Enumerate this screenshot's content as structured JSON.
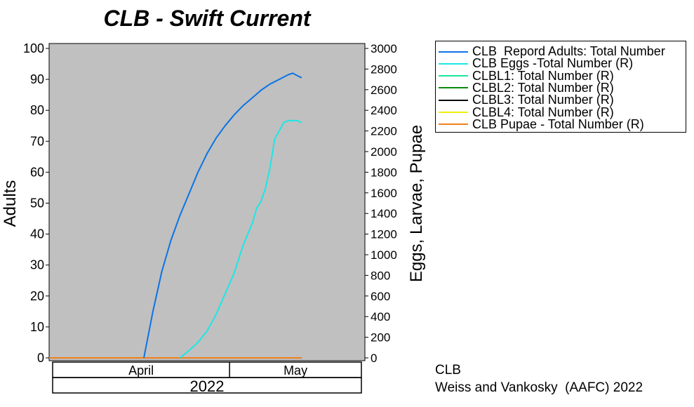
{
  "chart_data": {
    "type": "line",
    "title": "CLB - Swift Current",
    "ylabel_left": "Adults",
    "ylabel_right": "Eggs, Larvae, Pupae",
    "ylim_left": [
      0,
      100
    ],
    "yticks_left": [
      "0",
      "10",
      "20",
      "30",
      "40",
      "50",
      "60",
      "70",
      "80",
      "90",
      "100"
    ],
    "ylim_right": [
      0,
      3000
    ],
    "yticks_right": [
      "0",
      "200",
      "400",
      "600",
      "800",
      "1000",
      "1200",
      "1400",
      "1600",
      "1800",
      "2000",
      "2200",
      "2400",
      "2600",
      "2800",
      "3000"
    ],
    "x_months": [
      "April",
      "May"
    ],
    "x_year": "2022",
    "xlim": [
      "2022-03-22",
      "2022-05-31"
    ],
    "month_boundaries": [
      "2022-03-22",
      "2022-05-01",
      "2022-05-31"
    ],
    "background": "#c0c0c0",
    "legend_position": "right",
    "series": [
      {
        "name": "CLB  Repord Adults: Total Number",
        "axis": "left",
        "color": "#0a74e6",
        "x": [
          "2022-04-12",
          "2022-04-14",
          "2022-04-16",
          "2022-04-18",
          "2022-04-20",
          "2022-04-22",
          "2022-04-24",
          "2022-04-26",
          "2022-04-28",
          "2022-04-30",
          "2022-05-02",
          "2022-05-04",
          "2022-05-06",
          "2022-05-08",
          "2022-05-10",
          "2022-05-12",
          "2022-05-14",
          "2022-05-15",
          "2022-05-16",
          "2022-05-17"
        ],
        "y": [
          0,
          15,
          28,
          38,
          46,
          53,
          60,
          66,
          71,
          75,
          78.5,
          81.5,
          84,
          86.5,
          88.5,
          90,
          91.5,
          92,
          91.2,
          90.5
        ]
      },
      {
        "name": "CLB Eggs -Total Number (R)",
        "axis": "right",
        "color": "#1de6e6",
        "x": [
          "2022-04-20",
          "2022-04-22",
          "2022-04-24",
          "2022-04-26",
          "2022-04-28",
          "2022-04-30",
          "2022-05-02",
          "2022-05-04",
          "2022-05-06",
          "2022-05-07",
          "2022-05-08",
          "2022-05-09",
          "2022-05-10",
          "2022-05-11",
          "2022-05-12",
          "2022-05-13",
          "2022-05-14",
          "2022-05-15",
          "2022-05-16",
          "2022-05-17"
        ],
        "y": [
          0,
          70,
          150,
          260,
          420,
          620,
          820,
          1090,
          1300,
          1450,
          1520,
          1650,
          1850,
          2120,
          2200,
          2280,
          2300,
          2300,
          2300,
          2280
        ]
      },
      {
        "name": "CLBL1: Total Number (R)",
        "axis": "right",
        "color": "#1de69a",
        "x": [
          "2022-03-22",
          "2022-05-17"
        ],
        "y": [
          0,
          0
        ]
      },
      {
        "name": "CLBL2: Total Number (R)",
        "axis": "right",
        "color": "#0a8a0a",
        "x": [
          "2022-03-22",
          "2022-05-17"
        ],
        "y": [
          0,
          0
        ]
      },
      {
        "name": "CLBL3: Total Number (R)",
        "axis": "right",
        "color": "#000000",
        "x": [
          "2022-03-22",
          "2022-05-17"
        ],
        "y": [
          0,
          0
        ]
      },
      {
        "name": "CLBL4: Total Number (R)",
        "axis": "right",
        "color": "#f0f00a",
        "x": [
          "2022-03-22",
          "2022-05-17"
        ],
        "y": [
          0,
          0
        ]
      },
      {
        "name": "CLB Pupae - Total Number (R)",
        "axis": "right",
        "color": "#f07f1a",
        "x": [
          "2022-03-22",
          "2022-05-17"
        ],
        "y": [
          0,
          0
        ]
      }
    ]
  },
  "footer": {
    "line1": "CLB",
    "line2": "Weiss and Vankosky  (AAFC) 2022"
  }
}
